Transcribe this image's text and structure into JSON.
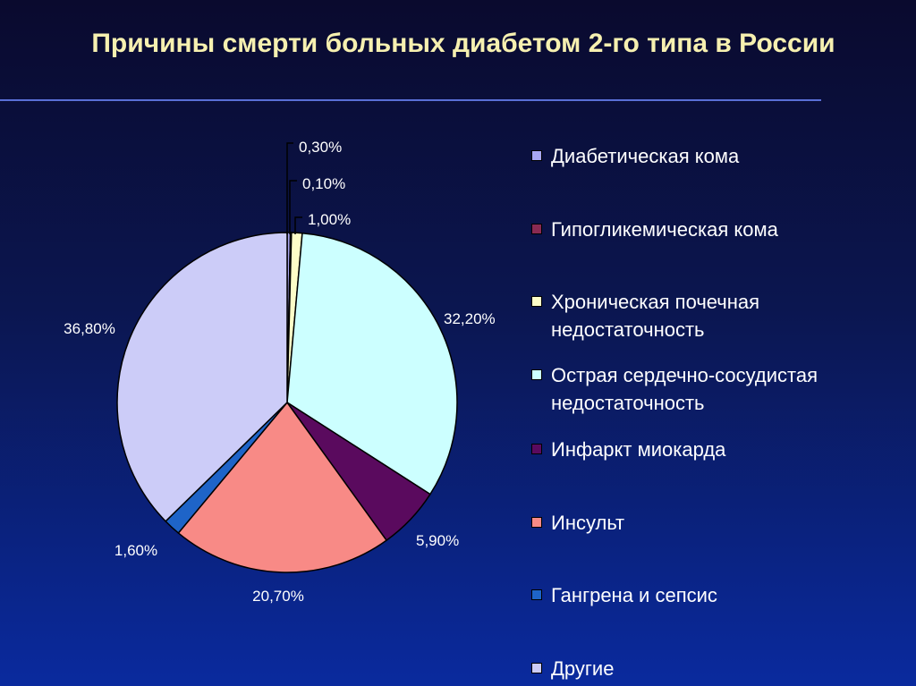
{
  "slide": {
    "title": "Причины смерти больных диабетом 2-го типа в России"
  },
  "chart_data": {
    "type": "pie",
    "title": "Причины смерти больных диабетом 2-го типа в России",
    "legend_position": "right",
    "slices": [
      {
        "name": "Диабетическая кома",
        "value": 0.3,
        "label": "0,30%",
        "color": "#a9a7f0"
      },
      {
        "name": "Гипогликемическая кома",
        "value": 0.1,
        "label": "0,10%",
        "color": "#8a2a52"
      },
      {
        "name": "Хроническая почечная недостаточность",
        "value": 1.0,
        "label": "1,00%",
        "color": "#fdfdc8"
      },
      {
        "name": "Острая сердечно-сосудистая недостаточность",
        "value": 32.2,
        "label": "32,20%",
        "color": "#ccffff"
      },
      {
        "name": "Инфаркт миокарда",
        "value": 5.9,
        "label": "5,90%",
        "color": "#5a0a5e"
      },
      {
        "name": "Инсульт",
        "value": 20.7,
        "label": "20,70%",
        "color": "#f88a86"
      },
      {
        "name": "Гангрена и сепсис",
        "value": 1.6,
        "label": "1,60%",
        "color": "#1e64c8"
      },
      {
        "name": "Другие",
        "value": 36.8,
        "label": "36,80%",
        "color": "#ccccf8"
      }
    ]
  }
}
